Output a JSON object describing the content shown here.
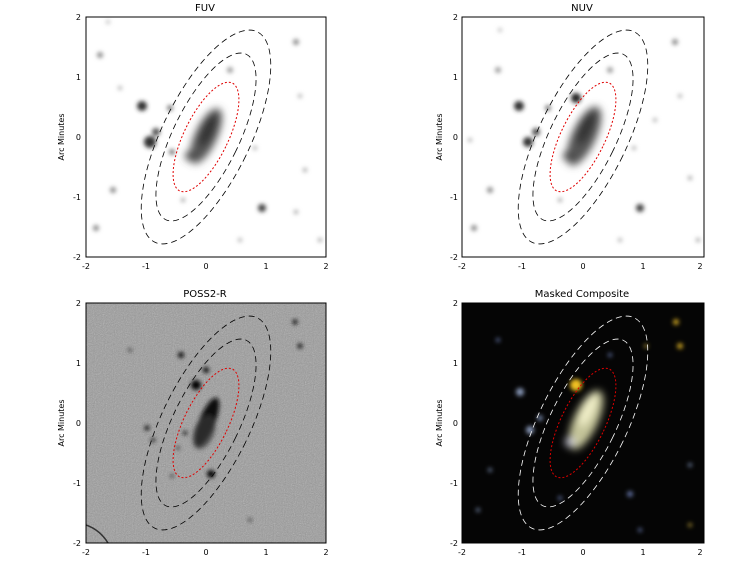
{
  "panels": [
    {
      "title": "FUV",
      "ylabel": "Arc Minutes",
      "xticks": [
        "-2",
        "-1",
        "0",
        "1",
        "2"
      ],
      "yticks": [
        "2",
        "1",
        "0",
        "-1",
        "-2"
      ],
      "background": "#ffffff",
      "ellipse_color": "#000000",
      "inner_ellipse_color": "#e00000"
    },
    {
      "title": "NUV",
      "ylabel": "Arc Minutes",
      "xticks": [
        "-2",
        "-1",
        "0",
        "1",
        "2"
      ],
      "yticks": [
        "2",
        "1",
        "0",
        "-1",
        "-2"
      ],
      "background": "#ffffff",
      "ellipse_color": "#000000",
      "inner_ellipse_color": "#e00000"
    },
    {
      "title": "POSS2-R",
      "ylabel": "Arc Minutes",
      "xticks": [
        "-2",
        "-1",
        "0",
        "1",
        "2"
      ],
      "yticks": [
        "2",
        "1",
        "0",
        "-1",
        "-2"
      ],
      "background": "#9a9a9a",
      "ellipse_color": "#000000",
      "inner_ellipse_color": "#e00000"
    },
    {
      "title": "Masked Composite",
      "ylabel": "Arc Minutes",
      "xticks": [
        "-2",
        "-1",
        "0",
        "1",
        "2"
      ],
      "yticks": [
        "2",
        "1",
        "0",
        "-1",
        "-2"
      ],
      "background": "#050505",
      "ellipse_color": "#ffffff",
      "inner_ellipse_color": "#e00000"
    }
  ]
}
